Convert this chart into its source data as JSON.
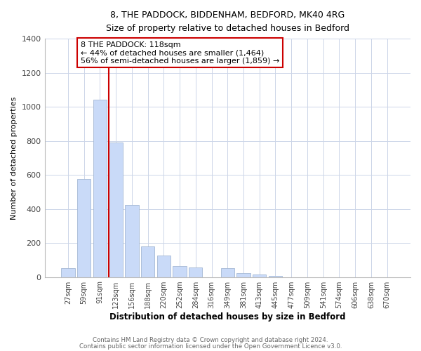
{
  "title": "8, THE PADDOCK, BIDDENHAM, BEDFORD, MK40 4RG",
  "subtitle": "Size of property relative to detached houses in Bedford",
  "xlabel": "Distribution of detached houses by size in Bedford",
  "ylabel": "Number of detached properties",
  "bar_labels": [
    "27sqm",
    "59sqm",
    "91sqm",
    "123sqm",
    "156sqm",
    "188sqm",
    "220sqm",
    "252sqm",
    "284sqm",
    "316sqm",
    "349sqm",
    "381sqm",
    "413sqm",
    "445sqm",
    "477sqm",
    "509sqm",
    "541sqm",
    "574sqm",
    "606sqm",
    "638sqm",
    "670sqm"
  ],
  "bar_values": [
    50,
    575,
    1040,
    790,
    425,
    180,
    125,
    65,
    55,
    0,
    50,
    25,
    15,
    5,
    0,
    0,
    0,
    0,
    0,
    0,
    0
  ],
  "bar_color": "#c9daf8",
  "bar_edge_color": "#a4b8d4",
  "vline_color": "#cc0000",
  "ylim": [
    0,
    1400
  ],
  "yticks": [
    0,
    200,
    400,
    600,
    800,
    1000,
    1200,
    1400
  ],
  "annotation_title": "8 THE PADDOCK: 118sqm",
  "annotation_line1": "← 44% of detached houses are smaller (1,464)",
  "annotation_line2": "56% of semi-detached houses are larger (1,859) →",
  "annotation_box_color": "#ffffff",
  "annotation_box_edge": "#cc0000",
  "footer1": "Contains HM Land Registry data © Crown copyright and database right 2024.",
  "footer2": "Contains public sector information licensed under the Open Government Licence v3.0.",
  "background_color": "#ffffff",
  "grid_color": "#ccd5e8"
}
